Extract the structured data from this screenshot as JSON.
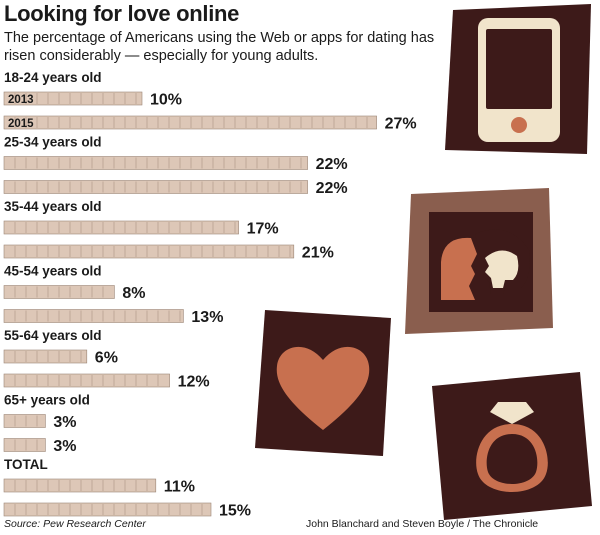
{
  "title": "Looking for love online",
  "subtitle": "The percentage of Americans using the Web or apps for dating has risen considerably — especially for young adults.",
  "source": "Source: Pew Research Center",
  "credit": "John Blanchard and Steven Boyle / The Chronicle",
  "colors": {
    "bar": "#ddc7b7",
    "tile_dark": "#3d1a19",
    "tile_mid": "#8a5e4e",
    "accent": "#c8704f",
    "pale": "#f1e4cb"
  },
  "icons": [
    "smartphone-icon",
    "couple-kiss-icon",
    "heart-icon",
    "ring-icon"
  ],
  "chart_data": {
    "type": "bar",
    "orientation": "horizontal",
    "title": "Looking for love online",
    "series_labels": [
      "2013",
      "2015"
    ],
    "groups": [
      {
        "label": "18-24 years old",
        "values": [
          10,
          27
        ]
      },
      {
        "label": "25-34 years old",
        "values": [
          22,
          22
        ]
      },
      {
        "label": "35-44 years old",
        "values": [
          17,
          21
        ]
      },
      {
        "label": "45-54 years old",
        "values": [
          8,
          13
        ]
      },
      {
        "label": "55-64 years old",
        "values": [
          6,
          12
        ]
      },
      {
        "label": "65+ years old",
        "values": [
          3,
          3
        ]
      },
      {
        "label": "TOTAL",
        "values": [
          11,
          15
        ]
      }
    ],
    "value_suffix": "%"
  }
}
